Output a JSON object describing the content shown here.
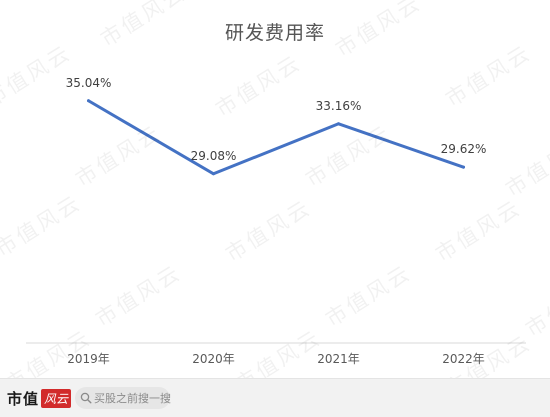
{
  "chart_data": {
    "type": "line",
    "title": "研发费用率",
    "categories": [
      "2019年",
      "2020年",
      "2021年",
      "2022年"
    ],
    "series": [
      {
        "values": [
          35.04,
          29.08,
          33.16,
          29.62
        ],
        "labels": [
          "35.04%",
          "29.08%",
          "33.16%",
          "29.62%"
        ],
        "color": "#4472C4"
      }
    ],
    "ylim": [
      20,
      40
    ],
    "grid": false,
    "legend": "none"
  },
  "watermark": {
    "text": "市值风云"
  },
  "footer": {
    "brand_text": "市值",
    "brand_seal": "风云",
    "search_placeholder": "买股之前搜一搜"
  },
  "colors": {
    "line": "#4472C4",
    "label": "#404040",
    "axis": "#d9d9d9",
    "brand_red": "#d22b2b"
  }
}
